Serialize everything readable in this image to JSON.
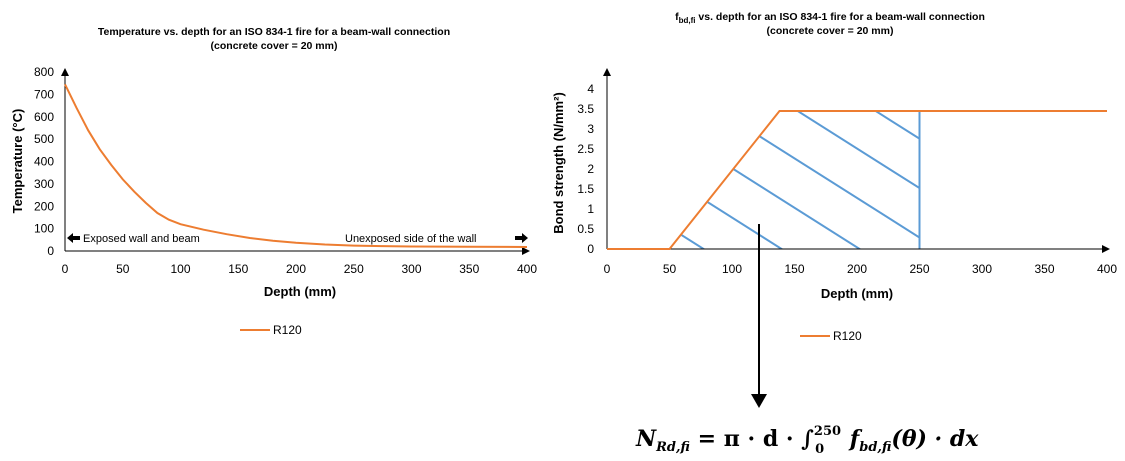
{
  "chart_data": [
    {
      "type": "line",
      "title": "Temperature vs. depth for an ISO 834-1 fire for a beam-wall connection",
      "subtitle": "(concrete cover = 20 mm)",
      "xlabel": "Depth (mm)",
      "ylabel": "Temperature (°C)",
      "xlim": [
        0,
        400
      ],
      "ylim": [
        0,
        800
      ],
      "x_ticks": [
        "0",
        "50",
        "100",
        "150",
        "200",
        "250",
        "300",
        "350",
        "400"
      ],
      "y_ticks": [
        "0",
        "100",
        "200",
        "300",
        "400",
        "500",
        "600",
        "700",
        "800"
      ],
      "grid": false,
      "legend_position": "bottom",
      "series": [
        {
          "name": "R120",
          "color": "#ED7D31",
          "x": [
            0,
            10,
            20,
            30,
            40,
            50,
            60,
            70,
            80,
            90,
            100,
            120,
            140,
            160,
            180,
            200,
            225,
            250,
            275,
            300,
            350,
            400
          ],
          "y": [
            745,
            640,
            540,
            455,
            385,
            320,
            265,
            215,
            170,
            140,
            120,
            95,
            75,
            58,
            46,
            37,
            29,
            24,
            22,
            20,
            19,
            18
          ]
        }
      ],
      "annotations": {
        "left": "Exposed wall and beam",
        "right": "Unexposed side of the wall"
      }
    },
    {
      "type": "line",
      "title_main": "f",
      "title_sub": "bd,fi",
      "title_rest": " vs. depth for an ISO 834-1 fire for a beam-wall connection",
      "subtitle": "(concrete cover = 20 mm)",
      "xlabel": "Depth (mm)",
      "ylabel": "Bond strength (N/mm²)",
      "xlim": [
        0,
        400
      ],
      "ylim": [
        0,
        4
      ],
      "x_ticks": [
        "0",
        "50",
        "100",
        "150",
        "200",
        "250",
        "300",
        "350",
        "400"
      ],
      "y_ticks": [
        "0",
        "0.5",
        "1",
        "1.5",
        "2",
        "2.5",
        "3",
        "3.5",
        "4"
      ],
      "grid": false,
      "legend_position": "bottom",
      "series": [
        {
          "name": "R120",
          "color": "#ED7D31",
          "x": [
            0,
            50,
            138,
            250,
            400
          ],
          "y": [
            0,
            0,
            3.45,
            3.45,
            3.45
          ]
        }
      ],
      "hatch": {
        "color": "#5B9BD5",
        "x_end": 250,
        "description": "integration area from 0 to 250 mm"
      }
    }
  ],
  "formula": {
    "lhs": "N",
    "lhs_sub": "Rd,fi",
    "eq": " = π · d · ∫",
    "int_upper": "250",
    "int_lower": "0",
    "rhs_f": " f",
    "rhs_sub": "bd,fi",
    "rhs_rest": "(θ) · dx"
  }
}
